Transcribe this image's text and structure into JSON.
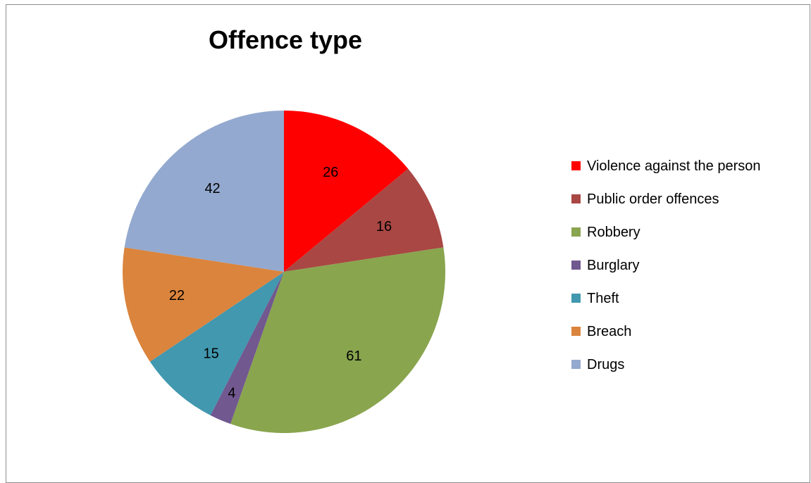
{
  "chart_data": {
    "type": "pie",
    "title": "Offence type",
    "categories": [
      "Violence against the person",
      "Public order offences",
      "Robbery",
      "Burglary",
      "Theft",
      "Breach",
      "Drugs"
    ],
    "values": [
      26,
      16,
      61,
      4,
      15,
      22,
      42
    ],
    "colors": [
      "#FF0000",
      "#A94744",
      "#89A54E",
      "#71588F",
      "#4198AF",
      "#DB843D",
      "#93A9CF"
    ],
    "start_angle": "12 o'clock",
    "direction": "clockwise",
    "data_labels": true,
    "legend_position": "right"
  }
}
